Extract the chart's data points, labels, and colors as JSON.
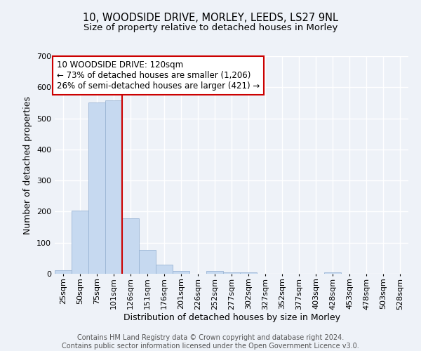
{
  "title_line1": "10, WOODSIDE DRIVE, MORLEY, LEEDS, LS27 9NL",
  "title_line2": "Size of property relative to detached houses in Morley",
  "xlabel": "Distribution of detached houses by size in Morley",
  "ylabel": "Number of detached properties",
  "bar_labels": [
    "25sqm",
    "50sqm",
    "75sqm",
    "101sqm",
    "126sqm",
    "151sqm",
    "176sqm",
    "201sqm",
    "226sqm",
    "252sqm",
    "277sqm",
    "302sqm",
    "327sqm",
    "352sqm",
    "377sqm",
    "403sqm",
    "428sqm",
    "453sqm",
    "478sqm",
    "503sqm",
    "528sqm"
  ],
  "bar_values": [
    12,
    203,
    551,
    557,
    178,
    77,
    29,
    10,
    0,
    8,
    5,
    5,
    0,
    0,
    0,
    0,
    5,
    0,
    0,
    0,
    0
  ],
  "bar_color": "#c6d9f0",
  "bar_edge_color": "#9ab5d4",
  "vline_x": 4,
  "vline_color": "#cc0000",
  "annotation_line1": "10 WOODSIDE DRIVE: 120sqm",
  "annotation_line2": "← 73% of detached houses are smaller (1,206)",
  "annotation_line3": "26% of semi-detached houses are larger (421) →",
  "annotation_box_facecolor": "#ffffff",
  "annotation_box_edgecolor": "#cc0000",
  "ylim": [
    0,
    700
  ],
  "yticks": [
    0,
    100,
    200,
    300,
    400,
    500,
    600,
    700
  ],
  "footer_line1": "Contains HM Land Registry data © Crown copyright and database right 2024.",
  "footer_line2": "Contains public sector information licensed under the Open Government Licence v3.0.",
  "background_color": "#eef2f8",
  "plot_bg_color": "#eef2f8",
  "grid_color": "#ffffff",
  "title_fontsize": 10.5,
  "subtitle_fontsize": 9.5,
  "axis_label_fontsize": 9,
  "tick_fontsize": 8,
  "annotation_fontsize": 8.5,
  "footer_fontsize": 7
}
